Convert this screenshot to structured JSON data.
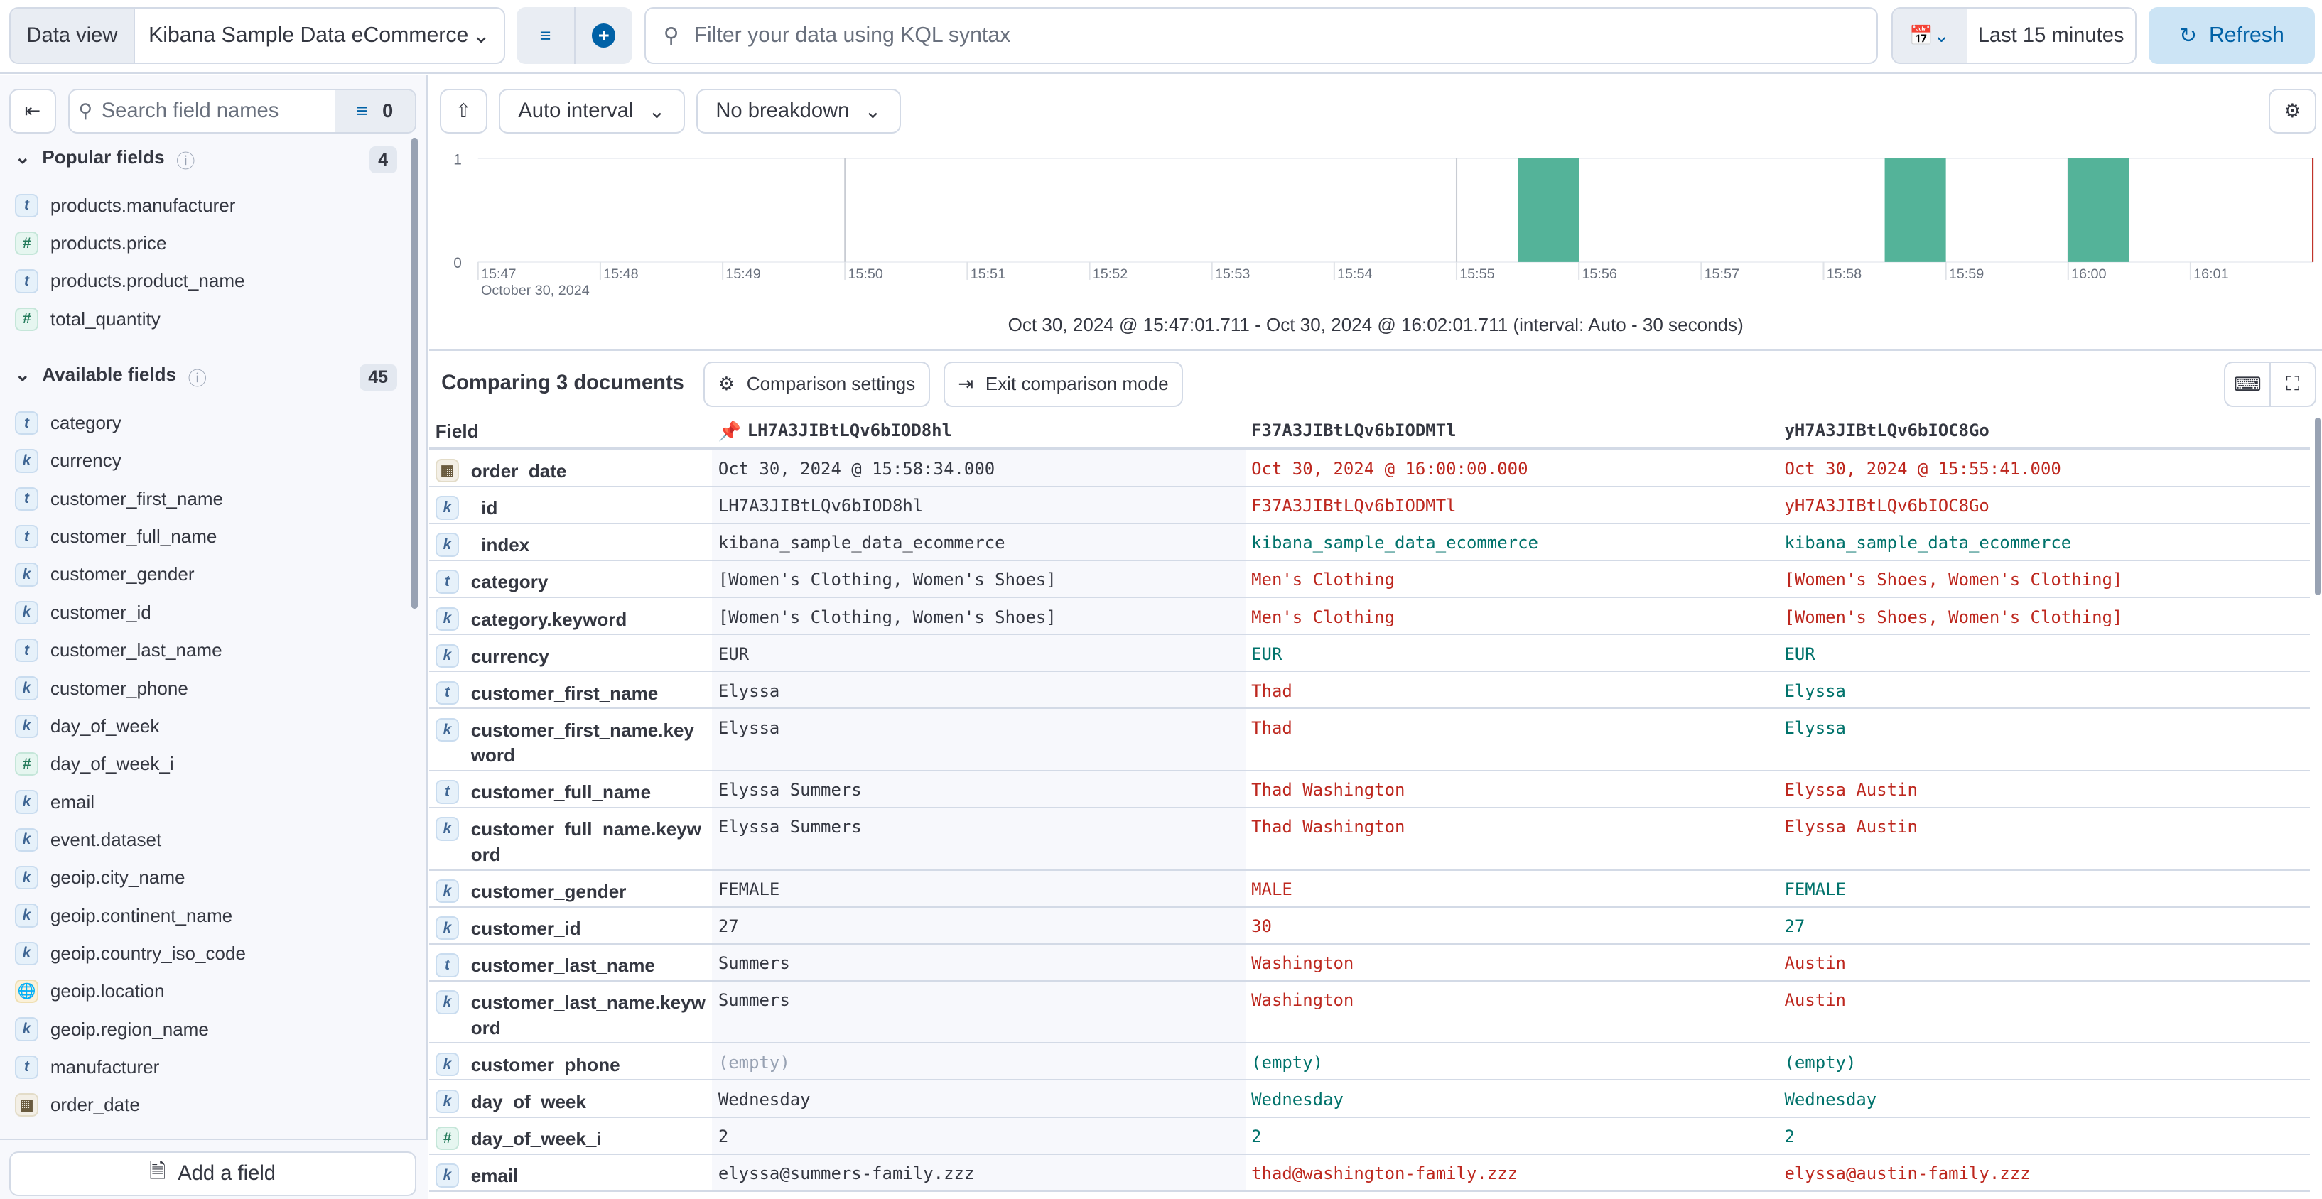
{
  "topbar": {
    "data_view_label": "Data view",
    "data_view_value": "Kibana Sample Data eCommerce",
    "query_placeholder": "Filter your data using KQL syntax",
    "time_range": "Last 15 minutes",
    "refresh_label": "Refresh"
  },
  "sidebar": {
    "search_placeholder": "Search field names",
    "filter_count": "0",
    "popular": {
      "title": "Popular fields",
      "count": "4",
      "items": [
        {
          "name": "products.manufacturer",
          "type": "t"
        },
        {
          "name": "products.price",
          "type": "n"
        },
        {
          "name": "products.product_name",
          "type": "t"
        },
        {
          "name": "total_quantity",
          "type": "n"
        }
      ]
    },
    "available": {
      "title": "Available fields",
      "count": "45",
      "items": [
        {
          "name": "category",
          "type": "t"
        },
        {
          "name": "currency",
          "type": "k"
        },
        {
          "name": "customer_first_name",
          "type": "t"
        },
        {
          "name": "customer_full_name",
          "type": "t"
        },
        {
          "name": "customer_gender",
          "type": "k"
        },
        {
          "name": "customer_id",
          "type": "k"
        },
        {
          "name": "customer_last_name",
          "type": "t"
        },
        {
          "name": "customer_phone",
          "type": "k"
        },
        {
          "name": "day_of_week",
          "type": "k"
        },
        {
          "name": "day_of_week_i",
          "type": "n"
        },
        {
          "name": "email",
          "type": "k"
        },
        {
          "name": "event.dataset",
          "type": "k"
        },
        {
          "name": "geoip.city_name",
          "type": "k"
        },
        {
          "name": "geoip.continent_name",
          "type": "k"
        },
        {
          "name": "geoip.country_iso_code",
          "type": "k"
        },
        {
          "name": "geoip.location",
          "type": "g"
        },
        {
          "name": "geoip.region_name",
          "type": "k"
        },
        {
          "name": "manufacturer",
          "type": "t"
        },
        {
          "name": "order_date",
          "type": "d"
        }
      ]
    },
    "add_field_label": "Add a field"
  },
  "toolbar": {
    "interval": "Auto interval",
    "breakdown": "No breakdown"
  },
  "chart_data": {
    "type": "bar",
    "x_ticks": [
      "15:47",
      "15:48",
      "15:49",
      "15:50",
      "15:51",
      "15:52",
      "15:53",
      "15:54",
      "15:55",
      "15:56",
      "15:57",
      "15:58",
      "15:59",
      "16:00",
      "16:01"
    ],
    "x_sub_label": "October 30, 2024",
    "y_ticks": [
      "0",
      "1"
    ],
    "ylim": [
      0,
      1
    ],
    "interval_seconds": 30,
    "bars": [
      {
        "start": "15:55:30",
        "count": 1
      },
      {
        "start": "15:58:30",
        "count": 1
      },
      {
        "start": "16:00:00",
        "count": 1
      }
    ],
    "bar_color": "#54b399",
    "range_text": "Oct 30, 2024 @ 15:47:01.711 - Oct 30, 2024 @ 16:02:01.711 (interval: Auto - 30 seconds)"
  },
  "compare": {
    "title": "Comparing 3 documents",
    "settings_label": "Comparison settings",
    "exit_label": "Exit comparison mode",
    "headers": [
      "Field",
      "LH7A3JIBtLQv6bIOD8hl",
      "F37A3JIBtLQv6bIODMTl",
      "yH7A3JIBtLQv6bIOC8Go"
    ],
    "rows": [
      {
        "field": "order_date",
        "type": "d",
        "v": [
          "Oct 30, 2024 @ 15:58:34.000",
          "Oct 30, 2024 @ 16:00:00.000",
          "Oct 30, 2024 @ 15:55:41.000"
        ],
        "s": [
          "diff",
          "diff"
        ]
      },
      {
        "field": "_id",
        "type": "k",
        "v": [
          "LH7A3JIBtLQv6bIOD8hl",
          "F37A3JIBtLQv6bIODMTl",
          "yH7A3JIBtLQv6bIOC8Go"
        ],
        "s": [
          "diff",
          "diff"
        ]
      },
      {
        "field": "_index",
        "type": "k",
        "v": [
          "kibana_sample_data_ecommerce",
          "kibana_sample_data_ecommerce",
          "kibana_sample_data_ecommerce"
        ],
        "s": [
          "same",
          "same"
        ]
      },
      {
        "field": "category",
        "type": "t",
        "v": [
          "[Women's Clothing, Women's Shoes]",
          "Men's Clothing",
          "[Women's Shoes, Women's Clothing]"
        ],
        "s": [
          "diff",
          "diff"
        ]
      },
      {
        "field": "category.keyword",
        "type": "k",
        "v": [
          "[Women's Clothing, Women's Shoes]",
          "Men's Clothing",
          "[Women's Shoes, Women's Clothing]"
        ],
        "s": [
          "diff",
          "diff"
        ]
      },
      {
        "field": "currency",
        "type": "k",
        "v": [
          "EUR",
          "EUR",
          "EUR"
        ],
        "s": [
          "same",
          "same"
        ]
      },
      {
        "field": "customer_first_name",
        "type": "t",
        "v": [
          "Elyssa",
          "Thad",
          "Elyssa"
        ],
        "s": [
          "diff",
          "same"
        ]
      },
      {
        "field": "customer_first_name.keyword",
        "type": "k",
        "v": [
          "Elyssa",
          "Thad",
          "Elyssa"
        ],
        "s": [
          "diff",
          "same"
        ],
        "tall": true
      },
      {
        "field": "customer_full_name",
        "type": "t",
        "v": [
          "Elyssa Summers",
          "Thad Washington",
          "Elyssa Austin"
        ],
        "s": [
          "diff",
          "diff"
        ]
      },
      {
        "field": "customer_full_name.keyword",
        "type": "k",
        "v": [
          "Elyssa Summers",
          "Thad Washington",
          "Elyssa Austin"
        ],
        "s": [
          "diff",
          "diff"
        ],
        "tall": true
      },
      {
        "field": "customer_gender",
        "type": "k",
        "v": [
          "FEMALE",
          "MALE",
          "FEMALE"
        ],
        "s": [
          "diff",
          "same"
        ]
      },
      {
        "field": "customer_id",
        "type": "k",
        "v": [
          "27",
          "30",
          "27"
        ],
        "s": [
          "diff",
          "same"
        ]
      },
      {
        "field": "customer_last_name",
        "type": "t",
        "v": [
          "Summers",
          "Washington",
          "Austin"
        ],
        "s": [
          "diff",
          "diff"
        ]
      },
      {
        "field": "customer_last_name.keyword",
        "type": "k",
        "v": [
          "Summers",
          "Washington",
          "Austin"
        ],
        "s": [
          "diff",
          "diff"
        ],
        "tall": true
      },
      {
        "field": "customer_phone",
        "type": "k",
        "v": [
          "(empty)",
          "(empty)",
          "(empty)"
        ],
        "s": [
          "same",
          "same"
        ]
      },
      {
        "field": "day_of_week",
        "type": "k",
        "v": [
          "Wednesday",
          "Wednesday",
          "Wednesday"
        ],
        "s": [
          "same",
          "same"
        ]
      },
      {
        "field": "day_of_week_i",
        "type": "n",
        "v": [
          "2",
          "2",
          "2"
        ],
        "s": [
          "same",
          "same"
        ]
      },
      {
        "field": "email",
        "type": "k",
        "v": [
          "elyssa@summers-family.zzz",
          "thad@washington-family.zzz",
          "elyssa@austin-family.zzz"
        ],
        "s": [
          "diff",
          "diff"
        ]
      }
    ]
  }
}
